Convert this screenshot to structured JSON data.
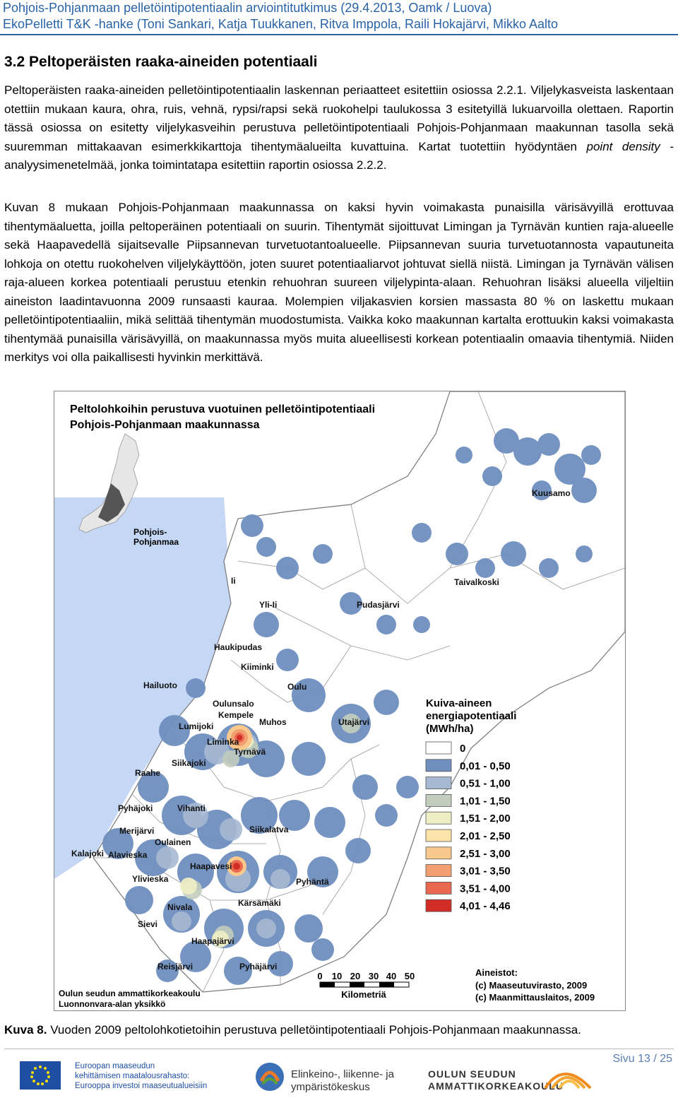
{
  "header": {
    "line1": "Pohjois-Pohjanmaan pelletöintipotentiaalin arviointitutkimus (29.4.2013, Oamk / Luova)",
    "line2": "EkoPelletti T&K -hanke (Toni Sankari, Katja Tuukkanen, Ritva Imppola, Raili Hokajärvi, Mikko Aalto"
  },
  "section": {
    "title": "3.2 Peltoperäisten raaka-aineiden potentiaali",
    "p1_a": "Peltoperäisten raaka-aineiden pelletöintipotentiaalin laskennan periaatteet esitettiin osiossa 2.2.1. Viljelykasveista laskentaan otettiin mukaan kaura, ohra, ruis, vehnä, rypsi/rapsi sekä ruokohelpi taulukossa 3 esitetyillä lukuarvoilla olettaen. Raportin tässä osiossa on esitetty viljelykasveihin perustuva pelletöintipotentiaali Pohjois-Pohjanmaan maakunnan tasolla sekä suuremman mittakaavan esimerkkikarttoja tihentymäalueilta kuvattuina. Kartat tuotettiin hyödyntäen",
    "p1_em": "point density",
    "p1_b": "- analyysimenetelmää, jonka toimintatapa esitettiin raportin osiossa 2.2.2.",
    "p2": "Kuvan 8 mukaan Pohjois-Pohjanmaan maakunnassa on kaksi hyvin voimakasta punaisilla värisävyillä erottuvaa tihentymäaluetta, joilla peltoperäinen potentiaali on suurin. Tihentymät sijoittuvat Limingan ja Tyrnävän kuntien raja-alueelle sekä Haapavedellä sijaitsevalle Piipsannevan turvetuotantoalueelle. Piipsannevan suuria turvetuotannosta vapautuneita lohkoja on otettu ruokohelven viljelykäyttöön, joten suuret potentiaaliarvot johtuvat siellä niistä. Limingan ja Tyrnävän välisen raja-alueen korkea potentiaali perustuu etenkin rehuohran suureen viljelypinta-alaan. Rehuohran lisäksi alueella viljeltiin aineiston laadintavuonna 2009 runsaasti kauraa. Molempien viljakasvien korsien massasta 80 % on laskettu mukaan pelletöintipotentiaaliin, mikä selittää tihentymän muodostumista. Vaikka koko maakunnan kartalta erottuukin kaksi voimakasta tihentymää punaisilla värisävyillä, on maakunnassa myös muita alueellisesti korkean potentiaalin omaavia tihentymiä. Niiden merkitys voi olla paikallisesti hyvinkin merkittävä."
  },
  "map": {
    "title1": "Peltolohkoihin perustuva vuotuinen pelletöintipotentiaali",
    "title2": "Pohjois-Pohjanmaan maakunnassa",
    "inset_label1": "Pohjois-",
    "inset_label2": "Pohjanmaa",
    "places": [
      "Kuusamo",
      "Taivalkoski",
      "Ii",
      "Yli-Ii",
      "Pudasjärvi",
      "Haukipudas",
      "Kiiminki",
      "Hailuoto",
      "Oulu",
      "Oulunsalo",
      "Kempele",
      "Muhos",
      "Lumijoki",
      "Liminka",
      "Tyrnävä",
      "Utajärvi",
      "Siikajoki",
      "Raahe",
      "Pyhäjoki",
      "Vihanti",
      "Merijärvi",
      "Oulainen",
      "Siikalatva",
      "Kalajoki",
      "Alavieska",
      "Haapavesi",
      "Ylivieska",
      "Pyhäntä",
      "Nivala",
      "Kärsämäki",
      "Sievi",
      "Haapajärvi",
      "Reisjärvi",
      "Pyhäjärvi"
    ],
    "legend_title": [
      "Kuiva-aineen",
      "energiapotentiaali",
      "(MWh/ha)"
    ],
    "legend": [
      {
        "label": "0",
        "color": "#ffffff"
      },
      {
        "label": "0,01 - 0,50",
        "color": "#6f8fbf"
      },
      {
        "label": "0,51 - 1,00",
        "color": "#a7b9d2"
      },
      {
        "label": "1,01 - 1,50",
        "color": "#c3cdbe"
      },
      {
        "label": "1,51 - 2,00",
        "color": "#eeeec4"
      },
      {
        "label": "2,01 - 2,50",
        "color": "#fbe3a9"
      },
      {
        "label": "2,51 - 3,00",
        "color": "#f8c88c"
      },
      {
        "label": "3,01 - 3,50",
        "color": "#f2a06f"
      },
      {
        "label": "3,51 - 4,00",
        "color": "#e8694f"
      },
      {
        "label": "4,01 - 4,46",
        "color": "#d22c26"
      }
    ],
    "scale_ticks": [
      "0",
      "10",
      "20",
      "30",
      "40",
      "50"
    ],
    "scale_unit": "Kilometriä",
    "source_title": "Aineistot:",
    "source1": "(c) Maaseutuvirasto, 2009",
    "source2": "(c) Maanmittauslaitos, 2009",
    "credit1": "Oulun seudun ammattikorkeakoulu",
    "credit2": "Luonnonvara-alan yksikkö"
  },
  "caption": {
    "label": "Kuva 8.",
    "text": " Vuoden 2009 peltolohkotietoihin perustuva pelletöintipotentiaali Pohjois-Pohjanmaan maakunnassa."
  },
  "footer": {
    "page": "Sivu 13 / 25",
    "eu_line1": "Euroopan maaseudun",
    "eu_line2": "kehittämisen maatalousrahasto:",
    "eu_line3": "Eurooppa investoi maaseutualueisiin",
    "ely_line1": "Elinkeino-, liikenne- ja",
    "ely_line2": "ympäristökeskus",
    "oamk_line1": "OULUN SEUDUN",
    "oamk_line2": "AMMATTIKORKEAKOULU"
  }
}
